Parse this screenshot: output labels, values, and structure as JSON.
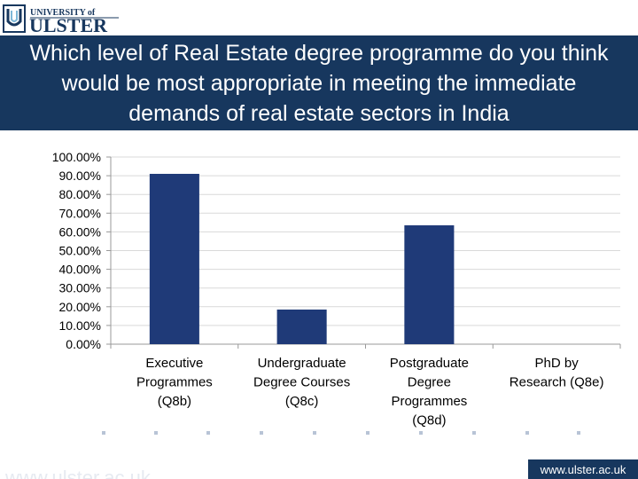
{
  "header": {
    "logo_text_small": "UNIVERSITY of",
    "logo_text_large": "ULSTER",
    "logo_mark_icon": "ulster-crest-icon"
  },
  "title": "Which level of Real Estate degree programme do you think would be most appropriate in meeting the immediate demands of real estate sectors in India",
  "chart_data": {
    "type": "bar",
    "title": "Which level of Real Estate degree programme do you think would be most appropriate in meeting the immediate demands of real estate sectors in India",
    "categories": [
      "Executive Programmes (Q8b)",
      "Undergraduate Degree Courses (Q8c)",
      "Postgraduate Degree Programmes (Q8d)",
      "PhD by Research (Q8e)"
    ],
    "category_lines": [
      [
        "Executive",
        "Programmes",
        "(Q8b)"
      ],
      [
        "Undergraduate",
        "Degree Courses",
        "(Q8c)"
      ],
      [
        "Postgraduate",
        "Degree",
        "Programmes",
        "(Q8d)"
      ],
      [
        "PhD by",
        "Research (Q8e)"
      ]
    ],
    "values": [
      91,
      18.5,
      63.5,
      0
    ],
    "ylim": [
      0,
      100
    ],
    "yticks": [
      0,
      10,
      20,
      30,
      40,
      50,
      60,
      70,
      80,
      90,
      100
    ],
    "ytick_labels": [
      "0.00%",
      "10.00%",
      "20.00%",
      "30.00%",
      "40.00%",
      "50.00%",
      "60.00%",
      "70.00%",
      "80.00%",
      "90.00%",
      "100.00%"
    ],
    "grid": true,
    "legend": "none",
    "bar_color": "#1f3a78",
    "grid_color": "#d9d9d9",
    "axis_color": "#999999"
  },
  "footer": {
    "left_text": "www.ulster.ac.uk",
    "right_text": "www.ulster.ac.uk"
  },
  "colors": {
    "title_band": "#17375e",
    "dot_color": "#b8c4d6"
  }
}
